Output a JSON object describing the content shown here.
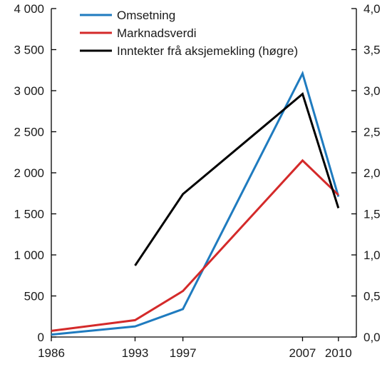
{
  "chart_data": {
    "type": "line",
    "x": [
      "1986",
      "1993",
      "1997",
      "2007",
      "2010"
    ],
    "x_numeric": [
      1986,
      1993,
      1997,
      2007,
      2010
    ],
    "xlim": [
      1986,
      2011.5
    ],
    "ylim_left": [
      0,
      4000
    ],
    "ylim_right": [
      0,
      4.0
    ],
    "yticks_left": [
      "0",
      "500",
      "1 000",
      "1 500",
      "2 000",
      "2 500",
      "3 000",
      "3 500",
      "4 000"
    ],
    "yticks_left_values": [
      0,
      500,
      1000,
      1500,
      2000,
      2500,
      3000,
      3500,
      4000
    ],
    "yticks_right": [
      "0,0",
      "0,5",
      "1,0",
      "1,5",
      "2,0",
      "2,5",
      "3,0",
      "3,5",
      "4,0"
    ],
    "yticks_right_values": [
      0,
      0.5,
      1.0,
      1.5,
      2.0,
      2.5,
      3.0,
      3.5,
      4.0
    ],
    "grid": false,
    "legend_placement": "top-center",
    "series": [
      {
        "name": "Omsetning",
        "color": "#1f7bbf",
        "axis": "left",
        "x": [
          1986,
          1993,
          1997,
          2007,
          2010
        ],
        "values": [
          30,
          130,
          340,
          3210,
          1710
        ]
      },
      {
        "name": "Marknadsverdi",
        "color": "#d42a2a",
        "axis": "left",
        "x": [
          1986,
          1993,
          1997,
          2007,
          2010
        ],
        "values": [
          75,
          205,
          560,
          2150,
          1730
        ]
      },
      {
        "name": "Inntekter frå aksjemekling (høgre)",
        "color": "#000000",
        "axis": "right",
        "x": [
          1993,
          1997,
          2007,
          2010
        ],
        "values": [
          0.87,
          1.74,
          2.96,
          1.57
        ]
      }
    ]
  }
}
